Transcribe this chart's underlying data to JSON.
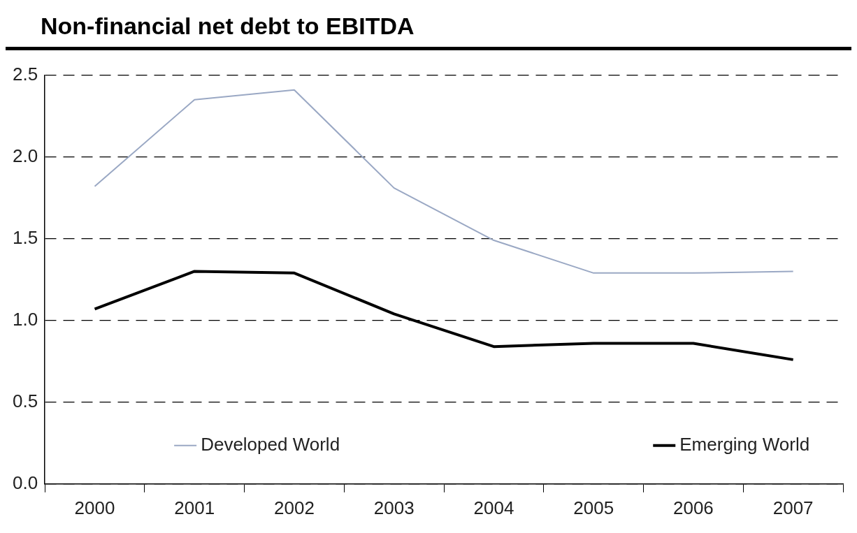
{
  "chart_data": {
    "type": "line",
    "title": "Non-financial net debt to EBITDA",
    "categories": [
      "2000",
      "2001",
      "2002",
      "2003",
      "2004",
      "2005",
      "2006",
      "2007"
    ],
    "series": [
      {
        "name": "Developed World",
        "color": "#9aa8c4",
        "values": [
          1.82,
          2.35,
          2.41,
          1.81,
          1.49,
          1.29,
          1.29,
          1.3
        ]
      },
      {
        "name": "Emerging World",
        "color": "#000000",
        "values": [
          1.07,
          1.3,
          1.29,
          1.04,
          0.84,
          0.86,
          0.86,
          0.76
        ]
      }
    ],
    "ylim": [
      0,
      2.5
    ],
    "yticks": [
      {
        "value": 0,
        "label": "0.0"
      },
      0.5,
      {
        "value": 1,
        "label": "1.0"
      },
      1.5,
      {
        "value": 2,
        "label": "2.0"
      },
      2.5
    ],
    "grid": "y",
    "line_style": "solid",
    "marker": "none",
    "legend": "bottom"
  }
}
